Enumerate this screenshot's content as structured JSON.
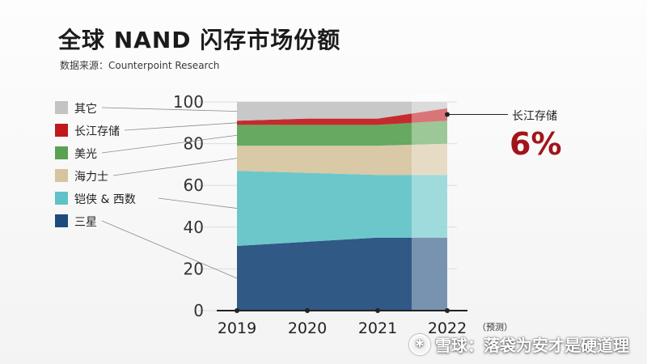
{
  "title": "全球 NAND 闪存市场份额",
  "source": "数据来源：Counterpoint Research",
  "watermark": "雪球：落袋为安才是硬道理",
  "chart_data": {
    "type": "area",
    "categories": [
      "2019",
      "2020",
      "2021",
      "2022"
    ],
    "forecast_note": "（预测）",
    "ylim": [
      0,
      100
    ],
    "yticks": [
      0,
      20,
      40,
      60,
      80,
      100
    ],
    "series": [
      {
        "name": "三星",
        "color": "#1e4b7c",
        "values": [
          31,
          33,
          35,
          35
        ]
      },
      {
        "name": "铠侠 & 西数",
        "color": "#5fc2c7",
        "values": [
          36,
          33,
          30,
          30
        ]
      },
      {
        "name": "海力士",
        "color": "#d6c4a0",
        "values": [
          12,
          13,
          14,
          15
        ]
      },
      {
        "name": "美光",
        "color": "#5aa253",
        "values": [
          10,
          10,
          10,
          11
        ]
      },
      {
        "name": "长江存储",
        "color": "#c0191c",
        "values": [
          2,
          3,
          3,
          6
        ]
      },
      {
        "name": "其它",
        "color": "#c3c3c3",
        "values": [
          9,
          8,
          8,
          3
        ]
      }
    ],
    "legend_order": [
      "其它",
      "长江存储",
      "美光",
      "海力士",
      "铠侠 & 西数",
      "三星"
    ],
    "callout": {
      "label": "长江存储",
      "value": "6%"
    }
  }
}
